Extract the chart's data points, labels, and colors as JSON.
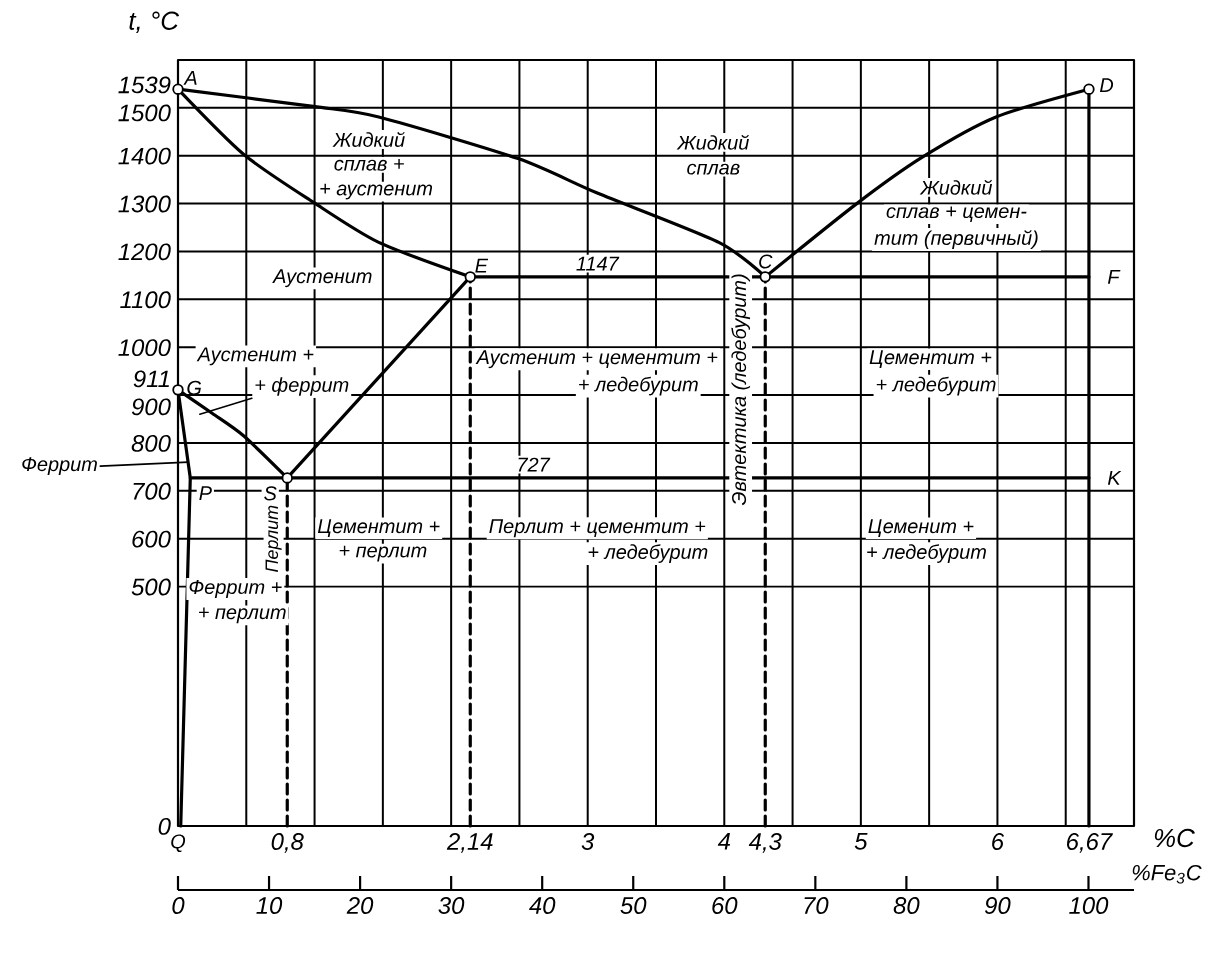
{
  "chart_data": {
    "type": "line",
    "xlabel": "%C",
    "ylabel": "t, °C",
    "x2label": "%Fe$_{3}$C",
    "xlim": [
      0,
      7
    ],
    "ylim": [
      0,
      1600
    ],
    "x2lim": [
      0,
      105
    ],
    "xticks": [
      {
        "value": 0.5,
        "label": null
      },
      {
        "value": 0.8,
        "label": "0,8"
      },
      {
        "value": 1,
        "label": null
      },
      {
        "value": 1.5,
        "label": null
      },
      {
        "value": 2,
        "label": null
      },
      {
        "value": 2.14,
        "label": "2,14"
      },
      {
        "value": 2.5,
        "label": null
      },
      3,
      {
        "value": 3.5,
        "label": null
      },
      4,
      {
        "value": 4.3,
        "label": "4,3"
      },
      {
        "value": 4.5,
        "label": null
      },
      5,
      {
        "value": 5.5,
        "label": null
      },
      6,
      {
        "value": 6.5,
        "label": null
      },
      {
        "value": 6.67,
        "label": "6,67"
      }
    ],
    "yticks": [
      0,
      500,
      600,
      700,
      800,
      900,
      911,
      1000,
      1100,
      1200,
      1300,
      1400,
      1500,
      1539
    ],
    "x2ticks": [
      0,
      10,
      20,
      30,
      40,
      50,
      60,
      70,
      80,
      90,
      100
    ],
    "grid": true,
    "line_style": "solid",
    "series": [
      {
        "color": "#000000",
        "x": [
          0,
          0.99,
          1.47,
          2.49,
          3.07,
          3.96,
          4.3
        ],
        "values": [
          1539,
          1503,
          1481,
          1394,
          1322,
          1219,
          1147
        ]
      },
      {
        "color": "#000000",
        "x": [
          4.3,
          4.97,
          5.45,
          5.99,
          6.67
        ],
        "values": [
          1147,
          1300,
          1397,
          1481,
          1539
        ]
      },
      {
        "color": "#000000",
        "x": [
          0,
          0.48,
          0.99,
          1.47,
          2.14
        ],
        "values": [
          1539,
          1403,
          1303,
          1219,
          1147
        ]
      },
      {
        "color": "#000000",
        "x": [
          2.14,
          6.67
        ],
        "values": [
          1147,
          1147
        ]
      },
      {
        "color": "#000000",
        "x": [
          0,
          0.25,
          0.48,
          0.8
        ],
        "values": [
          911,
          862,
          815,
          727
        ]
      },
      {
        "color": "#000000",
        "x": [
          0.8,
          2.14
        ],
        "values": [
          727,
          1147
        ]
      },
      {
        "color": "#000000",
        "x": [
          0,
          0.09,
          0.02
        ],
        "values": [
          911,
          727,
          0
        ]
      },
      {
        "color": "#000000",
        "x": [
          0.09,
          6.67
        ],
        "values": [
          727,
          727
        ]
      },
      {
        "color": "#000000",
        "x": [
          6.67,
          6.67
        ],
        "values": [
          0,
          1539
        ]
      },
      {
        "color": "#000000",
        "line_style": "dashed",
        "x": [
          0.8,
          0.8
        ],
        "values": [
          0,
          727
        ]
      },
      {
        "color": "#000000",
        "line_style": "dashed",
        "x": [
          2.14,
          2.14
        ],
        "values": [
          0,
          1147
        ]
      },
      {
        "color": "#000000",
        "line_style": "dashed",
        "x": [
          4.3,
          4.3
        ],
        "values": [
          0,
          1147
        ]
      },
      {
        "type": "scatter",
        "color": "#000000",
        "marker": "circle",
        "x": [
          0,
          6.67,
          2.14,
          4.3,
          0,
          0.8
        ],
        "values": [
          1539,
          1539,
          1147,
          1147,
          911,
          727
        ]
      }
    ],
    "annotations": [
      {
        "text": "A",
        "x": 0,
        "y": 1539
      },
      {
        "text": "D",
        "x": 6.67,
        "y": 1539
      },
      {
        "text": "E",
        "x": 2.14,
        "y": 1147
      },
      {
        "text": "C",
        "x": 4.3,
        "y": 1147
      },
      {
        "text": "F",
        "x": 6.67,
        "y": 1147
      },
      {
        "text": "G",
        "x": 0,
        "y": 911
      },
      {
        "text": "P",
        "x": 0.09,
        "y": 727
      },
      {
        "text": "S",
        "x": 0.8,
        "y": 727
      },
      {
        "text": "K",
        "x": 6.67,
        "y": 727
      },
      {
        "text": "Q",
        "x": 0,
        "y": 0
      },
      {
        "text": "1147",
        "x": 3.07,
        "y": 1147
      },
      {
        "text": "727",
        "x": 2.6,
        "y": 727
      },
      "Жидкий",
      "сплав +",
      "+ аустенит",
      "Жидкий",
      "сплав",
      "Жидкий",
      "сплав + цемен-",
      "тит (первичный)",
      "Аустенит",
      "Аустенит +",
      {
        "text": "+ феррит",
        "x": 0.16,
        "y": 860
      },
      "Аустенит + цементит +",
      "+ ледебурит",
      "Цементит +",
      "+ ледебурит",
      "Цементит +",
      "+ перлит",
      "Перлит + цементит +",
      "+ ледебурит",
      "Цеменит +",
      "+ ледебурит",
      "Феррит +",
      "+ перлит",
      "Перлит",
      "Эвтектика (ледебурит)",
      "Феррит"
    ]
  }
}
